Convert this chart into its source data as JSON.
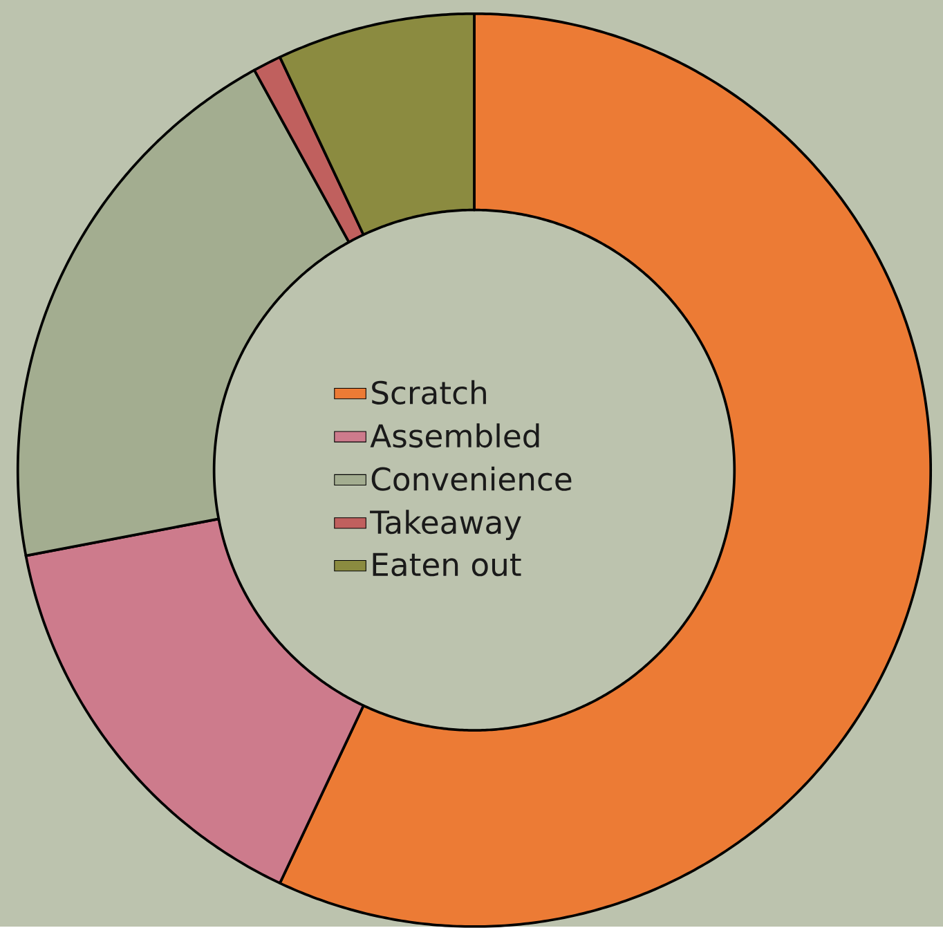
{
  "chart_data": {
    "type": "donut",
    "categories": [
      "Scratch",
      "Assembled",
      "Convenience",
      "Takeaway",
      "Eaten out"
    ],
    "values": [
      57,
      15,
      20,
      1,
      7
    ],
    "colors": [
      "#ec7b35",
      "#cd7b8c",
      "#a3ad90",
      "#c0605e",
      "#8b8b40"
    ],
    "legend": "center"
  }
}
